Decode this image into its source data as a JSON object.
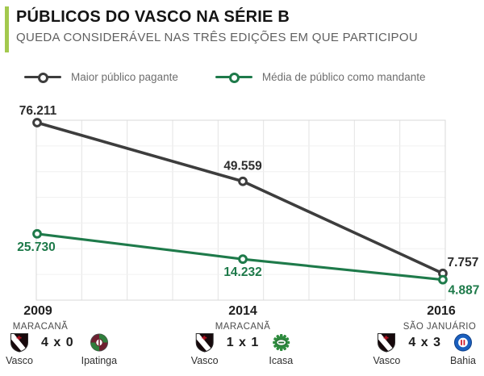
{
  "header": {
    "title": "PÚBLICOS DO VASCO NA SÉRIE B",
    "subtitle": "QUEDA CONSIDERÁVEL NAS TRÊS EDIÇÕES EM QUE PARTICIPOU",
    "accent_color": "#a3c94e"
  },
  "chart_data": {
    "type": "line",
    "title": "Públicos do Vasco na Série B",
    "categories": [
      "2009",
      "2014",
      "2016"
    ],
    "series": [
      {
        "name": "Maior público pagante",
        "color": "#3d3d3d",
        "values": [
          76211,
          49559,
          7757
        ],
        "labels": [
          "76.211",
          "49.559",
          "7.757"
        ]
      },
      {
        "name": "Média de público como mandante",
        "color": "#1e7a4a",
        "values": [
          25730,
          14232,
          4887
        ],
        "labels": [
          "25.730",
          "14.232",
          "4.887"
        ]
      }
    ],
    "xlabel": "",
    "ylabel": "",
    "ylim": [
      0,
      80000
    ],
    "grid": true,
    "legend_position": "top",
    "marker": "open-circle"
  },
  "footer": {
    "editions": [
      {
        "year": "2009",
        "stadium": "MARACANÃ",
        "home": "Vasco",
        "away": "Ipatinga",
        "score": "4 x 0"
      },
      {
        "year": "2014",
        "stadium": "MARACANÃ",
        "home": "Vasco",
        "away": "Icasa",
        "score": "1 x 1"
      },
      {
        "year": "2016",
        "stadium": "SÃO JANUÁRIO",
        "home": "Vasco",
        "away": "Bahia",
        "score": "4 x 3"
      }
    ]
  }
}
